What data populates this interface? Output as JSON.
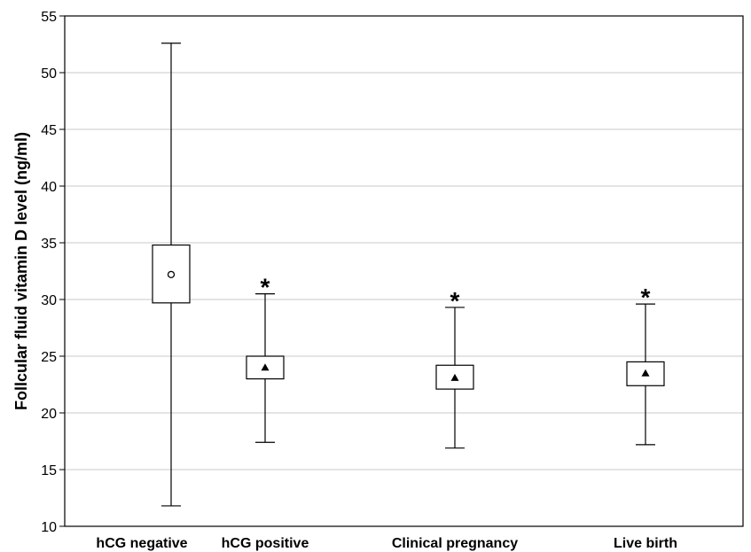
{
  "chart_data": {
    "type": "box",
    "title": "",
    "xlabel": "",
    "ylabel": "Follcular fluid vitamin D level (ng/ml)",
    "ylim": [
      10,
      55
    ],
    "yticks": [
      "10",
      "15",
      "20",
      "25",
      "30",
      "35",
      "40",
      "45",
      "50",
      "55"
    ],
    "grid": true,
    "categories": [
      "hCG negative",
      "hCG positive",
      "Clinical pregnancy",
      "Live birth"
    ],
    "series": [
      {
        "category": "hCG negative",
        "whisker_low": 11.8,
        "box_low": 29.7,
        "center": 32.2,
        "box_high": 34.8,
        "whisker_high": 52.6,
        "marker": "circle",
        "annotation": ""
      },
      {
        "category": "hCG positive",
        "whisker_low": 17.4,
        "box_low": 23.0,
        "center": 24.0,
        "box_high": 25.0,
        "whisker_high": 30.5,
        "marker": "triangle",
        "annotation": "*"
      },
      {
        "category": "Clinical pregnancy",
        "whisker_low": 16.9,
        "box_low": 22.1,
        "center": 23.1,
        "box_high": 24.2,
        "whisker_high": 29.3,
        "marker": "triangle",
        "annotation": "*"
      },
      {
        "category": "Live birth",
        "whisker_low": 17.2,
        "box_low": 22.4,
        "center": 23.5,
        "box_high": 24.5,
        "whisker_high": 29.6,
        "marker": "triangle",
        "annotation": "*"
      }
    ]
  }
}
